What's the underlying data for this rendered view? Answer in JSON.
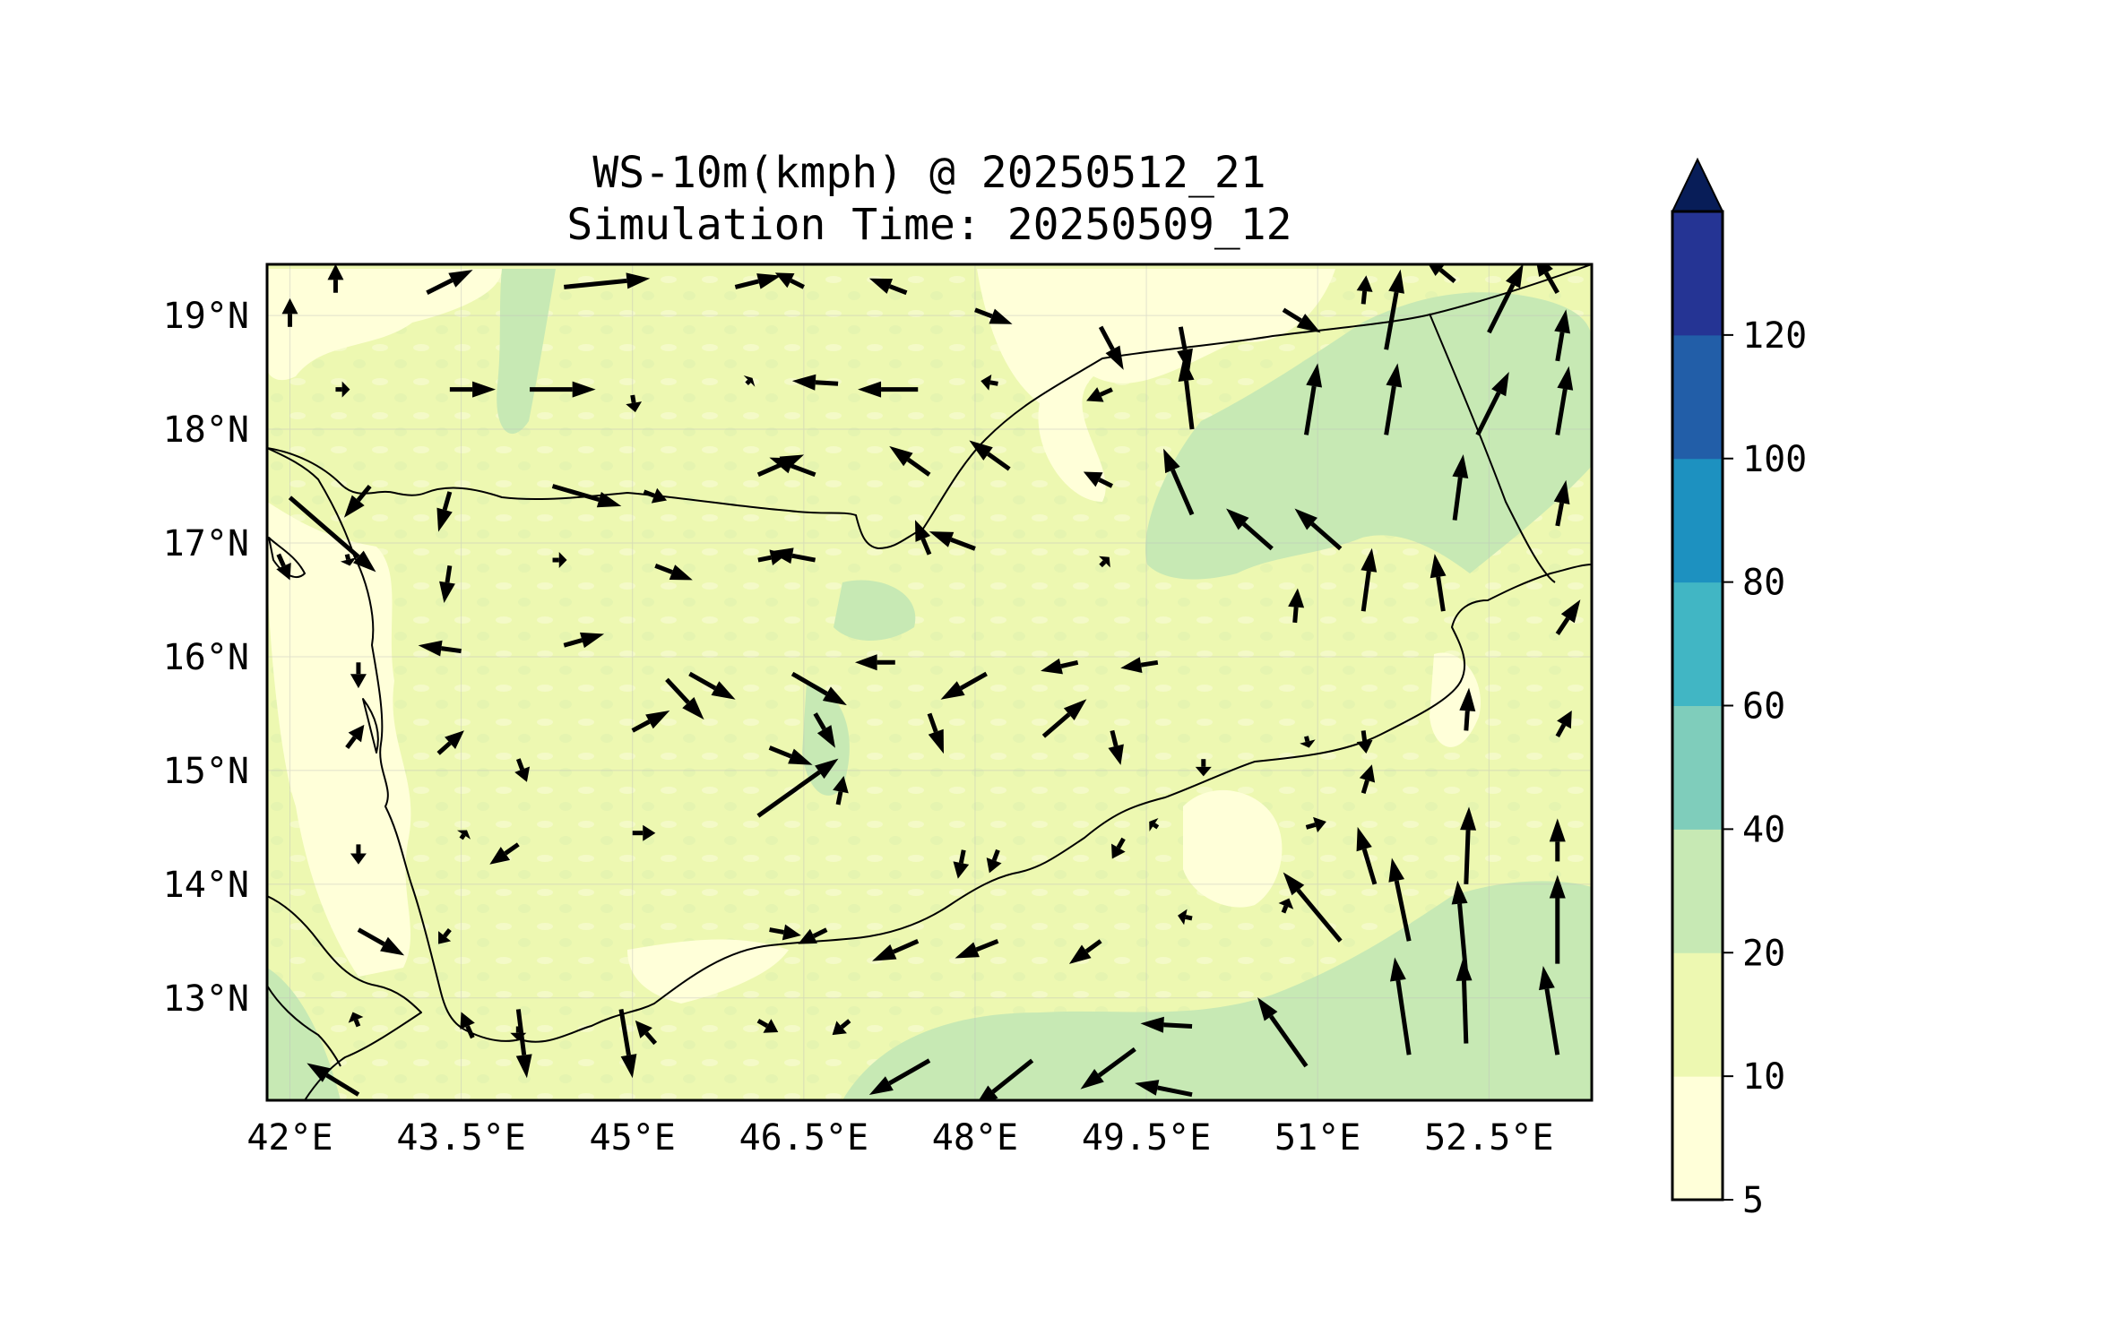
{
  "title": {
    "line1": "WS-10m(kmph) @ 20250512_21",
    "line2": "Simulation Time: 20250509_12"
  },
  "map": {
    "region": "Yemen",
    "projection": "PlateCarree",
    "lon_range": [
      41.8,
      53.4
    ],
    "lat_range": [
      12.1,
      19.45
    ],
    "x_ticks": [
      {
        "value": 42.0,
        "label": "42°E"
      },
      {
        "value": 43.5,
        "label": "43.5°E"
      },
      {
        "value": 45.0,
        "label": "45°E"
      },
      {
        "value": 46.5,
        "label": "46.5°E"
      },
      {
        "value": 48.0,
        "label": "48°E"
      },
      {
        "value": 49.5,
        "label": "49.5°E"
      },
      {
        "value": 51.0,
        "label": "51°E"
      },
      {
        "value": 52.5,
        "label": "52.5°E"
      }
    ],
    "y_ticks": [
      {
        "value": 19,
        "label": "19°N"
      },
      {
        "value": 18,
        "label": "18°N"
      },
      {
        "value": 17,
        "label": "17°N"
      },
      {
        "value": 16,
        "label": "16°N"
      },
      {
        "value": 15,
        "label": "15°N"
      },
      {
        "value": 14,
        "label": "14°N"
      },
      {
        "value": 13,
        "label": "13°N"
      }
    ],
    "gridlines": true,
    "coastline_color": "#000000",
    "vector_color": "#000000"
  },
  "colorbar": {
    "levels": [
      5,
      10,
      20,
      40,
      60,
      80,
      100,
      120
    ],
    "labels": [
      "5",
      "10",
      "20",
      "40",
      "60",
      "80",
      "100",
      "120"
    ],
    "colors": [
      "#ffffd9",
      "#edf8b1",
      "#c7e9b4",
      "#7fcdbb",
      "#41b6c4",
      "#1d91c0",
      "#225ea8",
      "#253494"
    ],
    "extend_color": "#081d58",
    "extend": "max"
  },
  "chart_data": {
    "type": "map-quiver",
    "field": "10 m wind speed (kmph)",
    "valid_time": "20250512_21",
    "simulation_time": "20250509_12",
    "shaded_zones": [
      {
        "region": "most of the domain",
        "class_kmph": "10-20"
      },
      {
        "region": "eastern interior (Hadramawt / Al Mahrah)",
        "class_kmph": "20-40"
      },
      {
        "region": "Gulf of Aden south of 13.2°N",
        "class_kmph": "20-40"
      },
      {
        "region": "Red Sea coastal plain and Arabian Sea near 50.5°E, 14.2°N",
        "class_kmph": "5-10"
      }
    ],
    "wind_vectors": [
      {
        "lon": 42.0,
        "lat": 18.9,
        "u": 0,
        "v": 1
      },
      {
        "lon": 42.4,
        "lat": 19.2,
        "u": 0,
        "v": 1
      },
      {
        "lon": 43.2,
        "lat": 19.2,
        "u": 1.6,
        "v": 0.8
      },
      {
        "lon": 44.4,
        "lat": 19.25,
        "u": 3.0,
        "v": 0.3
      },
      {
        "lon": 45.9,
        "lat": 19.25,
        "u": 1.6,
        "v": 0.4
      },
      {
        "lon": 46.5,
        "lat": 19.25,
        "u": -1.0,
        "v": 0.5
      },
      {
        "lon": 47.4,
        "lat": 19.2,
        "u": -1.3,
        "v": 0.5
      },
      {
        "lon": 48.0,
        "lat": 19.05,
        "u": 1.3,
        "v": -0.5
      },
      {
        "lon": 49.1,
        "lat": 18.9,
        "u": 0.8,
        "v": -1.5
      },
      {
        "lon": 49.8,
        "lat": 18.9,
        "u": 0.3,
        "v": -1.6
      },
      {
        "lon": 50.7,
        "lat": 19.05,
        "u": 1.3,
        "v": -0.8
      },
      {
        "lon": 51.4,
        "lat": 19.1,
        "u": 0.1,
        "v": 1.0
      },
      {
        "lon": 51.6,
        "lat": 18.7,
        "u": 0.5,
        "v": 2.8
      },
      {
        "lon": 52.2,
        "lat": 19.3,
        "u": -1.1,
        "v": 0.9
      },
      {
        "lon": 52.5,
        "lat": 18.85,
        "u": 1.2,
        "v": 2.4
      },
      {
        "lon": 53.1,
        "lat": 19.2,
        "u": -0.8,
        "v": 1.4
      },
      {
        "lon": 53.1,
        "lat": 18.6,
        "u": 0.3,
        "v": 1.8
      },
      {
        "lon": 42.4,
        "lat": 18.35,
        "u": 0.5,
        "v": 0.0
      },
      {
        "lon": 43.4,
        "lat": 18.35,
        "u": 1.6,
        "v": 0.0
      },
      {
        "lon": 44.1,
        "lat": 18.35,
        "u": 2.3,
        "v": 0.0
      },
      {
        "lon": 45.0,
        "lat": 18.3,
        "u": 0.1,
        "v": -0.6
      },
      {
        "lon": 46.0,
        "lat": 18.4,
        "u": 0.2,
        "v": 0.2
      },
      {
        "lon": 46.8,
        "lat": 18.4,
        "u": -1.6,
        "v": 0.1
      },
      {
        "lon": 47.5,
        "lat": 18.35,
        "u": -2.1,
        "v": 0.0
      },
      {
        "lon": 48.2,
        "lat": 18.4,
        "u": -0.6,
        "v": 0.1
      },
      {
        "lon": 49.2,
        "lat": 18.35,
        "u": -0.9,
        "v": -0.4
      },
      {
        "lon": 49.9,
        "lat": 18.0,
        "u": -0.3,
        "v": 2.5
      },
      {
        "lon": 50.9,
        "lat": 17.95,
        "u": 0.4,
        "v": 2.5
      },
      {
        "lon": 51.6,
        "lat": 17.95,
        "u": 0.4,
        "v": 2.5
      },
      {
        "lon": 52.4,
        "lat": 17.95,
        "u": 1.1,
        "v": 2.2
      },
      {
        "lon": 53.1,
        "lat": 17.95,
        "u": 0.4,
        "v": 2.4
      },
      {
        "lon": 42.7,
        "lat": 17.5,
        "u": -0.9,
        "v": -1.1
      },
      {
        "lon": 43.4,
        "lat": 17.45,
        "u": -0.4,
        "v": -1.4
      },
      {
        "lon": 44.3,
        "lat": 17.5,
        "u": 2.4,
        "v": -0.7
      },
      {
        "lon": 45.1,
        "lat": 17.45,
        "u": 0.8,
        "v": -0.3
      },
      {
        "lon": 46.1,
        "lat": 17.6,
        "u": 1.6,
        "v": 0.7
      },
      {
        "lon": 46.6,
        "lat": 17.6,
        "u": -1.6,
        "v": 0.6
      },
      {
        "lon": 47.6,
        "lat": 17.6,
        "u": -1.4,
        "v": 1.0
      },
      {
        "lon": 48.3,
        "lat": 17.65,
        "u": -1.4,
        "v": 1.0
      },
      {
        "lon": 49.2,
        "lat": 17.5,
        "u": -1.0,
        "v": 0.5
      },
      {
        "lon": 49.9,
        "lat": 17.25,
        "u": -1.0,
        "v": 2.3
      },
      {
        "lon": 50.6,
        "lat": 16.95,
        "u": -1.6,
        "v": 1.4
      },
      {
        "lon": 51.2,
        "lat": 16.95,
        "u": -1.6,
        "v": 1.4
      },
      {
        "lon": 52.2,
        "lat": 17.2,
        "u": 0.3,
        "v": 2.3
      },
      {
        "lon": 53.1,
        "lat": 17.15,
        "u": 0.3,
        "v": 1.6
      },
      {
        "lon": 42.0,
        "lat": 17.4,
        "u": 3.0,
        "v": -2.6
      },
      {
        "lon": 41.9,
        "lat": 16.9,
        "u": 0.4,
        "v": -0.9
      },
      {
        "lon": 42.5,
        "lat": 16.9,
        "u": 0.1,
        "v": -0.4
      },
      {
        "lon": 43.4,
        "lat": 16.8,
        "u": -0.2,
        "v": -1.3
      },
      {
        "lon": 44.3,
        "lat": 16.85,
        "u": 0.5,
        "v": 0.0
      },
      {
        "lon": 45.2,
        "lat": 16.8,
        "u": 1.3,
        "v": -0.5
      },
      {
        "lon": 46.1,
        "lat": 16.85,
        "u": 1.0,
        "v": 0.2
      },
      {
        "lon": 46.6,
        "lat": 16.85,
        "u": -1.6,
        "v": 0.3
      },
      {
        "lon": 47.6,
        "lat": 16.9,
        "u": -0.5,
        "v": 1.2
      },
      {
        "lon": 48.0,
        "lat": 16.95,
        "u": -1.6,
        "v": 0.6
      },
      {
        "lon": 49.1,
        "lat": 16.8,
        "u": 0.3,
        "v": 0.3
      },
      {
        "lon": 50.8,
        "lat": 16.3,
        "u": 0.1,
        "v": 1.2
      },
      {
        "lon": 51.4,
        "lat": 16.4,
        "u": 0.3,
        "v": 2.2
      },
      {
        "lon": 52.1,
        "lat": 16.4,
        "u": -0.3,
        "v": 2.0
      },
      {
        "lon": 53.1,
        "lat": 16.2,
        "u": 0.8,
        "v": 1.2
      },
      {
        "lon": 42.6,
        "lat": 15.95,
        "u": 0.0,
        "v": -0.9
      },
      {
        "lon": 43.5,
        "lat": 16.05,
        "u": -1.5,
        "v": 0.2
      },
      {
        "lon": 44.4,
        "lat": 16.1,
        "u": 1.4,
        "v": 0.4
      },
      {
        "lon": 45.3,
        "lat": 15.8,
        "u": 1.3,
        "v": -1.4
      },
      {
        "lon": 45.5,
        "lat": 15.85,
        "u": 1.6,
        "v": -0.9
      },
      {
        "lon": 46.4,
        "lat": 15.85,
        "u": 1.9,
        "v": -1.1
      },
      {
        "lon": 47.3,
        "lat": 15.95,
        "u": -1.4,
        "v": 0.0
      },
      {
        "lon": 48.1,
        "lat": 15.85,
        "u": -1.6,
        "v": -0.9
      },
      {
        "lon": 48.9,
        "lat": 15.95,
        "u": -1.3,
        "v": -0.3
      },
      {
        "lon": 49.6,
        "lat": 15.95,
        "u": -1.3,
        "v": -0.2
      },
      {
        "lon": 42.5,
        "lat": 15.2,
        "u": 0.6,
        "v": 0.8
      },
      {
        "lon": 43.3,
        "lat": 15.15,
        "u": 0.9,
        "v": 0.8
      },
      {
        "lon": 44.0,
        "lat": 15.1,
        "u": 0.3,
        "v": -0.8
      },
      {
        "lon": 45.0,
        "lat": 15.35,
        "u": 1.3,
        "v": 0.7
      },
      {
        "lon": 46.2,
        "lat": 15.2,
        "u": 1.5,
        "v": -0.6
      },
      {
        "lon": 46.6,
        "lat": 15.5,
        "u": 0.7,
        "v": -1.2
      },
      {
        "lon": 47.6,
        "lat": 15.5,
        "u": 0.5,
        "v": -1.4
      },
      {
        "lon": 48.6,
        "lat": 15.3,
        "u": 1.5,
        "v": 1.3
      },
      {
        "lon": 49.2,
        "lat": 15.35,
        "u": 0.3,
        "v": -1.2
      },
      {
        "lon": 50.0,
        "lat": 15.1,
        "u": 0.0,
        "v": -0.6
      },
      {
        "lon": 50.9,
        "lat": 15.3,
        "u": 0.1,
        "v": -0.4
      },
      {
        "lon": 51.4,
        "lat": 15.35,
        "u": 0.1,
        "v": -0.8
      },
      {
        "lon": 52.3,
        "lat": 15.35,
        "u": 0.1,
        "v": 1.5
      },
      {
        "lon": 53.1,
        "lat": 15.3,
        "u": 0.5,
        "v": 0.9
      },
      {
        "lon": 42.6,
        "lat": 14.35,
        "u": 0.0,
        "v": -0.7
      },
      {
        "lon": 43.5,
        "lat": 14.4,
        "u": 0.2,
        "v": 0.3
      },
      {
        "lon": 44.0,
        "lat": 14.35,
        "u": -1.0,
        "v": -0.7
      },
      {
        "lon": 45.0,
        "lat": 14.45,
        "u": 0.8,
        "v": 0.0
      },
      {
        "lon": 46.1,
        "lat": 14.6,
        "u": 2.8,
        "v": 2.0
      },
      {
        "lon": 46.8,
        "lat": 14.7,
        "u": 0.2,
        "v": 1.0
      },
      {
        "lon": 47.9,
        "lat": 14.3,
        "u": -0.2,
        "v": -1.0
      },
      {
        "lon": 48.2,
        "lat": 14.3,
        "u": -0.3,
        "v": -0.8
      },
      {
        "lon": 49.3,
        "lat": 14.4,
        "u": -0.4,
        "v": -0.7
      },
      {
        "lon": 49.6,
        "lat": 14.5,
        "u": -0.3,
        "v": 0.2
      },
      {
        "lon": 50.9,
        "lat": 14.5,
        "u": 0.7,
        "v": 0.2
      },
      {
        "lon": 51.4,
        "lat": 14.8,
        "u": 0.3,
        "v": 1.0
      },
      {
        "lon": 51.5,
        "lat": 14.0,
        "u": -0.6,
        "v": 2.0
      },
      {
        "lon": 52.3,
        "lat": 14.0,
        "u": 0.1,
        "v": 2.7
      },
      {
        "lon": 53.1,
        "lat": 14.2,
        "u": 0.0,
        "v": 1.5
      },
      {
        "lon": 42.6,
        "lat": 13.6,
        "u": 1.6,
        "v": -0.9
      },
      {
        "lon": 43.4,
        "lat": 13.6,
        "u": -0.4,
        "v": -0.5
      },
      {
        "lon": 44.0,
        "lat": 12.9,
        "u": 0.3,
        "v": -2.4
      },
      {
        "lon": 44.9,
        "lat": 12.9,
        "u": 0.4,
        "v": -2.4
      },
      {
        "lon": 46.2,
        "lat": 13.6,
        "u": 1.1,
        "v": -0.2
      },
      {
        "lon": 46.7,
        "lat": 13.6,
        "u": -1.0,
        "v": -0.5
      },
      {
        "lon": 47.5,
        "lat": 13.5,
        "u": -1.6,
        "v": -0.7
      },
      {
        "lon": 48.2,
        "lat": 13.5,
        "u": -1.5,
        "v": -0.6
      },
      {
        "lon": 49.1,
        "lat": 13.5,
        "u": -1.1,
        "v": -0.8
      },
      {
        "lon": 49.9,
        "lat": 13.7,
        "u": -0.5,
        "v": 0.1
      },
      {
        "lon": 50.7,
        "lat": 13.75,
        "u": 0.2,
        "v": 0.5
      },
      {
        "lon": 51.2,
        "lat": 13.5,
        "u": -2.0,
        "v": 2.4
      },
      {
        "lon": 51.8,
        "lat": 13.5,
        "u": -0.6,
        "v": 2.9
      },
      {
        "lon": 52.3,
        "lat": 13.2,
        "u": -0.3,
        "v": 3.3
      },
      {
        "lon": 53.1,
        "lat": 13.3,
        "u": 0.0,
        "v": 3.1
      },
      {
        "lon": 42.6,
        "lat": 12.75,
        "u": -0.2,
        "v": 0.5
      },
      {
        "lon": 43.6,
        "lat": 12.65,
        "u": -0.4,
        "v": 0.9
      },
      {
        "lon": 44.0,
        "lat": 12.75,
        "u": 0.0,
        "v": -0.5
      },
      {
        "lon": 45.2,
        "lat": 12.6,
        "u": -0.7,
        "v": 0.8
      },
      {
        "lon": 46.1,
        "lat": 12.8,
        "u": 0.7,
        "v": -0.4
      },
      {
        "lon": 46.9,
        "lat": 12.8,
        "u": -0.6,
        "v": -0.5
      },
      {
        "lon": 47.6,
        "lat": 12.45,
        "u": -2.1,
        "v": -1.2
      },
      {
        "lon": 48.5,
        "lat": 12.45,
        "u": -2.0,
        "v": -1.6
      },
      {
        "lon": 49.4,
        "lat": 12.55,
        "u": -1.9,
        "v": -1.4
      },
      {
        "lon": 49.9,
        "lat": 12.75,
        "u": -1.8,
        "v": 0.1
      },
      {
        "lon": 50.9,
        "lat": 12.4,
        "u": -1.7,
        "v": 2.4
      },
      {
        "lon": 51.8,
        "lat": 12.5,
        "u": -0.5,
        "v": 3.4
      },
      {
        "lon": 52.3,
        "lat": 12.6,
        "u": -0.1,
        "v": 3.0
      },
      {
        "lon": 53.1,
        "lat": 12.5,
        "u": -0.5,
        "v": 3.1
      },
      {
        "lon": 42.6,
        "lat": 12.15,
        "u": -1.8,
        "v": 1.1
      },
      {
        "lon": 49.9,
        "lat": 12.15,
        "u": -2.0,
        "v": 0.4
      }
    ]
  }
}
